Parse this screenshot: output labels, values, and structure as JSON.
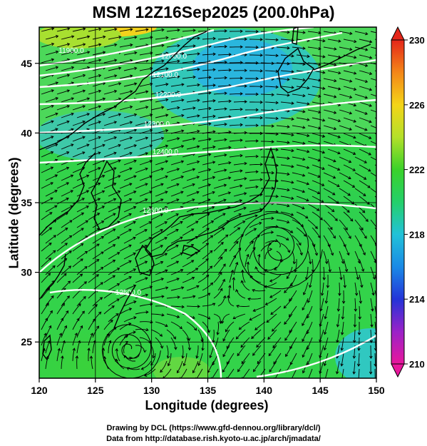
{
  "title": "MSM 12Z16Sep2025 (200.0hPa)",
  "x_axis": {
    "label": "Longitude (degrees)",
    "min": 120,
    "max": 150,
    "ticks": [
      "120",
      "125",
      "130",
      "135",
      "140",
      "145",
      "150"
    ]
  },
  "y_axis": {
    "label": "Latitude  (degrees)",
    "min": 22.4,
    "max": 47.6,
    "ticks": [
      "25",
      "30",
      "35",
      "40",
      "45"
    ]
  },
  "colorbar": {
    "min": 210,
    "max": 230,
    "ticks": [
      "210",
      "214",
      "218",
      "222",
      "226",
      "230"
    ]
  },
  "contour_labels": [
    "11900.0",
    "12000.0",
    "12100.0",
    "12200.0",
    "12300.0",
    "12400.0",
    "12500.0",
    "12500.0"
  ],
  "vortices": [
    {
      "lon": 141.2,
      "lat": 31.8
    },
    {
      "lon": 128.0,
      "lat": 24.5
    }
  ],
  "credits": [
    "Drawing by DCL (https://www.gfd-dennou.org/library/dcl/)",
    "Data from http://database.rish.kyoto-u.ac.jp/arch/jmadata/"
  ],
  "colors": {
    "low": "#e0169a",
    "mid": "#24d22e",
    "high": "#e82c18",
    "contour": "#ffffff"
  }
}
